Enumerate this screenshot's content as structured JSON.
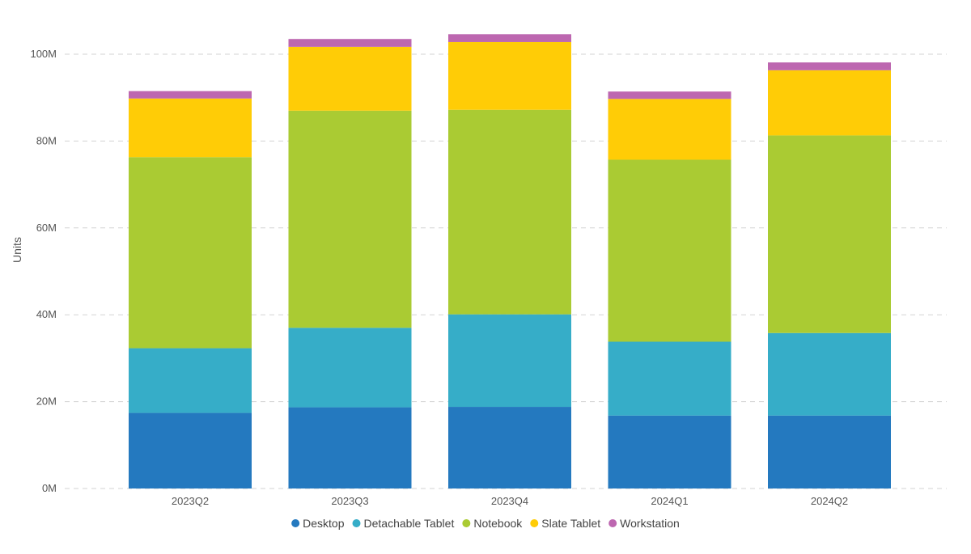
{
  "chart_data": {
    "type": "bar",
    "stacked": true,
    "title": "",
    "xlabel": "",
    "ylabel": "Units",
    "ylim": [
      0,
      100000000
    ],
    "yticks": [
      0,
      20000000,
      40000000,
      60000000,
      80000000,
      100000000
    ],
    "ytick_labels": [
      "0M",
      "20M",
      "40M",
      "60M",
      "80M",
      "100M"
    ],
    "grid": true,
    "legend_position": "bottom-center",
    "categories": [
      "2023Q2",
      "2023Q3",
      "2023Q4",
      "2024Q1",
      "2024Q2"
    ],
    "series": [
      {
        "name": "Desktop",
        "color": "#2479BF",
        "values": [
          17400000,
          18700000,
          18800000,
          16800000,
          16800000
        ]
      },
      {
        "name": "Detachable Tablet",
        "color": "#36ADC8",
        "values": [
          14900000,
          18300000,
          21300000,
          17000000,
          19000000
        ]
      },
      {
        "name": "Notebook",
        "color": "#AACB33",
        "values": [
          44000000,
          50000000,
          47100000,
          41900000,
          45500000
        ]
      },
      {
        "name": "Slate Tablet",
        "color": "#FFCC06",
        "values": [
          13500000,
          14700000,
          15600000,
          14000000,
          15000000
        ]
      },
      {
        "name": "Workstation",
        "color": "#BD67B0",
        "values": [
          1700000,
          1800000,
          1800000,
          1700000,
          1800000
        ]
      }
    ]
  }
}
